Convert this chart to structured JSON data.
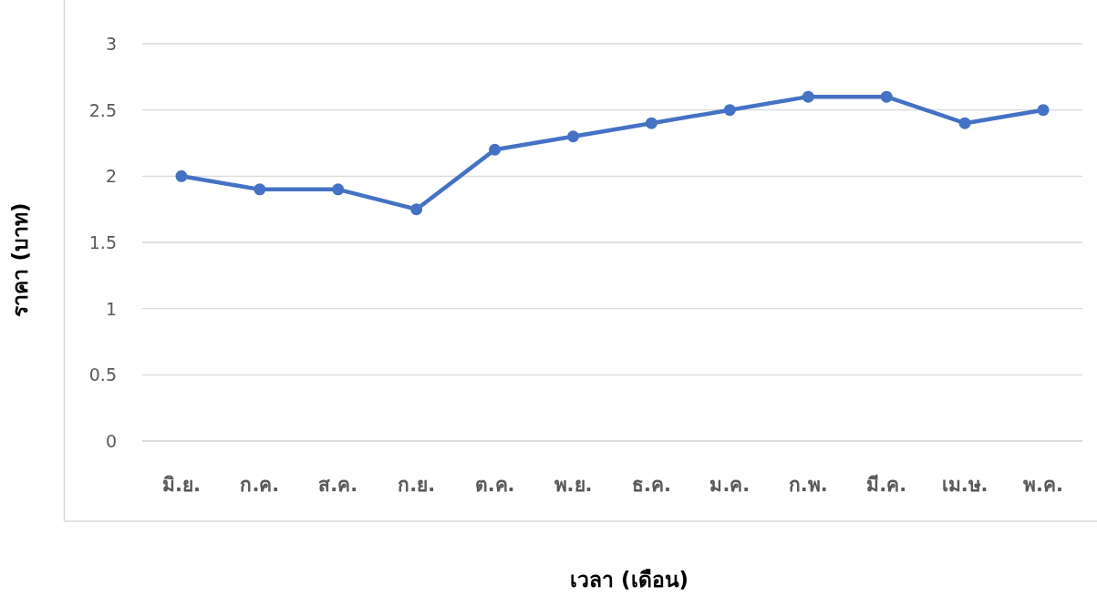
{
  "chart_data": {
    "type": "line",
    "xlabel": "เวลา (เดือน)",
    "ylabel": "ราคา (บาท)",
    "categories": [
      "มิ.ย.",
      "ก.ค.",
      "ส.ค.",
      "ก.ย.",
      "ต.ค.",
      "พ.ย.",
      "ธ.ค.",
      "ม.ค.",
      "ก.พ.",
      "มี.ค.",
      "เม.ษ.",
      "พ.ค."
    ],
    "series": [
      {
        "color": "#4472c4",
        "values": [
          2.0,
          1.9,
          1.9,
          1.75,
          2.2,
          2.3,
          2.4,
          2.5,
          2.6,
          2.6,
          2.4,
          2.5
        ]
      }
    ],
    "ylim": [
      0,
      3
    ],
    "yticks": [
      0,
      0.5,
      1,
      1.5,
      2,
      2.5,
      3
    ],
    "grid": "y",
    "marker": "circle"
  }
}
